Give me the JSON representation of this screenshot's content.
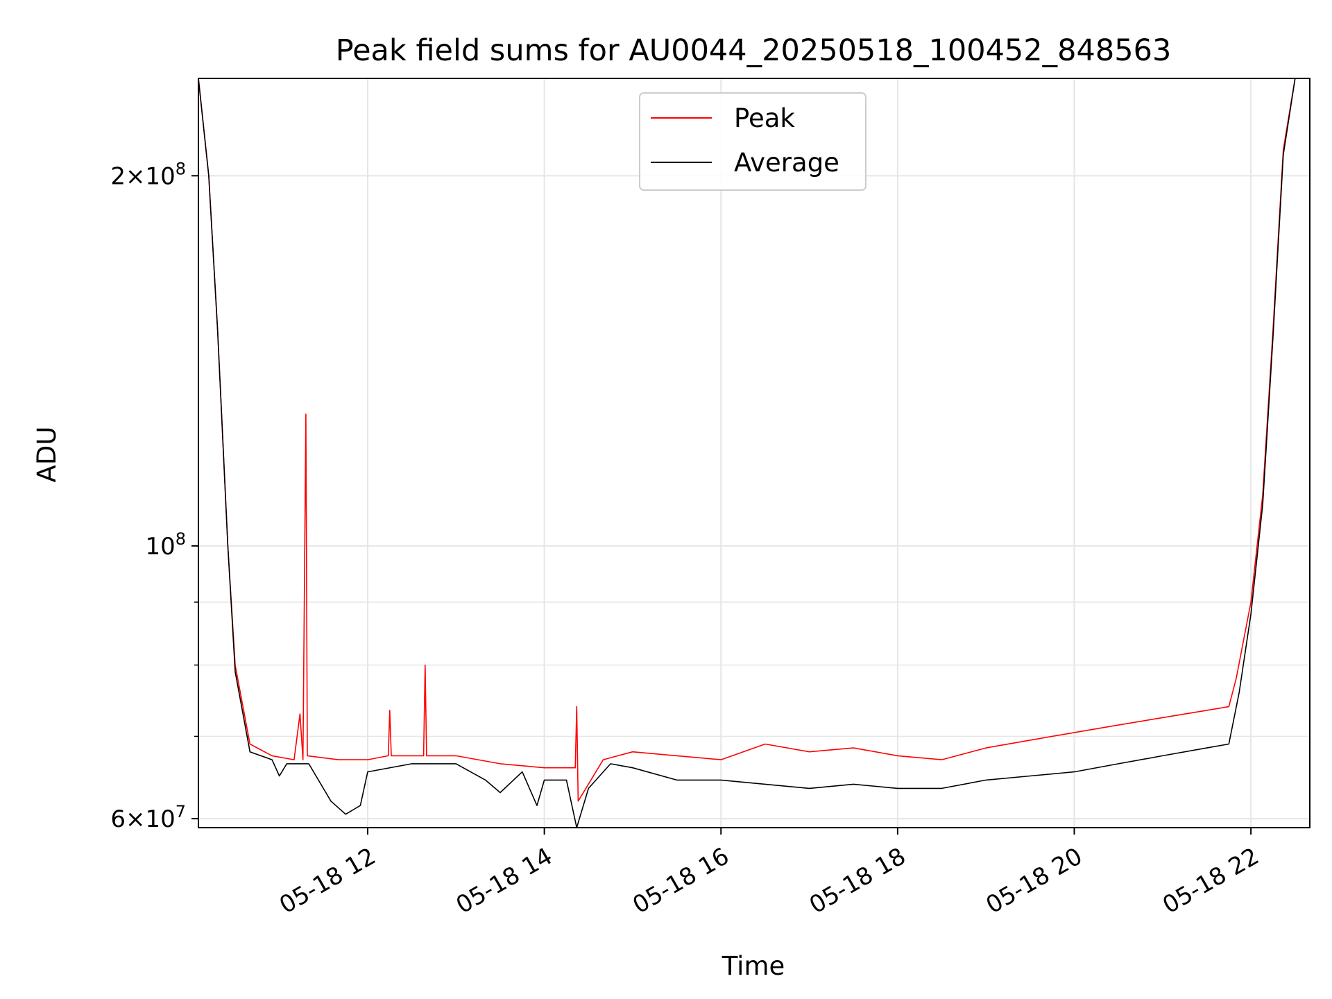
{
  "chart_data": {
    "type": "line",
    "title": "Peak field sums for AU0044_20250518_100452_848563",
    "xlabel": "Time",
    "ylabel": "ADU",
    "x_range": [
      "2025-05-18 10:05",
      "2025-05-18 22:40"
    ],
    "ylim": [
      59000000,
      240000000
    ],
    "y_scale": "log",
    "grid": true,
    "legend_position": "upper center",
    "x_ticks": [
      {
        "value": "2025-05-18 12:00",
        "label": "05-18 12"
      },
      {
        "value": "2025-05-18 14:00",
        "label": "05-18 14"
      },
      {
        "value": "2025-05-18 16:00",
        "label": "05-18 16"
      },
      {
        "value": "2025-05-18 18:00",
        "label": "05-18 18"
      },
      {
        "value": "2025-05-18 20:00",
        "label": "05-18 20"
      },
      {
        "value": "2025-05-18 22:00",
        "label": "05-18 22"
      }
    ],
    "y_ticks": [
      {
        "value": 60000000,
        "base": "6",
        "exp": "7"
      },
      {
        "value": 100000000,
        "base": "",
        "exp": "8"
      },
      {
        "value": 200000000,
        "base": "2",
        "exp": "8"
      }
    ],
    "series": [
      {
        "name": "Peak",
        "color": "#ff0000",
        "points": [
          [
            "2025-05-18 10:05",
            240000000
          ],
          [
            "2025-05-18 10:12",
            200000000
          ],
          [
            "2025-05-18 10:18",
            150000000
          ],
          [
            "2025-05-18 10:25",
            100000000
          ],
          [
            "2025-05-18 10:30",
            80000000
          ],
          [
            "2025-05-18 10:40",
            69000000
          ],
          [
            "2025-05-18 10:55",
            67500000
          ],
          [
            "2025-05-18 11:10",
            67000000
          ],
          [
            "2025-05-18 11:14",
            73000000
          ],
          [
            "2025-05-18 11:16",
            67000000
          ],
          [
            "2025-05-18 11:18",
            128000000
          ],
          [
            "2025-05-18 11:19",
            67500000
          ],
          [
            "2025-05-18 11:40",
            67000000
          ],
          [
            "2025-05-18 12:00",
            67000000
          ],
          [
            "2025-05-18 12:14",
            67500000
          ],
          [
            "2025-05-18 12:15",
            73500000
          ],
          [
            "2025-05-18 12:16",
            67500000
          ],
          [
            "2025-05-18 12:38",
            67500000
          ],
          [
            "2025-05-18 12:39",
            80000000
          ],
          [
            "2025-05-18 12:40",
            67500000
          ],
          [
            "2025-05-18 13:00",
            67500000
          ],
          [
            "2025-05-18 13:30",
            66500000
          ],
          [
            "2025-05-18 14:00",
            66000000
          ],
          [
            "2025-05-18 14:21",
            66000000
          ],
          [
            "2025-05-18 14:22",
            74000000
          ],
          [
            "2025-05-18 14:23",
            62000000
          ],
          [
            "2025-05-18 14:40",
            67000000
          ],
          [
            "2025-05-18 15:00",
            68000000
          ],
          [
            "2025-05-18 15:30",
            67500000
          ],
          [
            "2025-05-18 16:00",
            67000000
          ],
          [
            "2025-05-18 16:30",
            69000000
          ],
          [
            "2025-05-18 17:00",
            68000000
          ],
          [
            "2025-05-18 17:30",
            68500000
          ],
          [
            "2025-05-18 18:00",
            67500000
          ],
          [
            "2025-05-18 18:30",
            67000000
          ],
          [
            "2025-05-18 19:00",
            68500000
          ],
          [
            "2025-05-18 19:30",
            69500000
          ],
          [
            "2025-05-18 20:00",
            70500000
          ],
          [
            "2025-05-18 20:30",
            71500000
          ],
          [
            "2025-05-18 21:00",
            72500000
          ],
          [
            "2025-05-18 21:30",
            73500000
          ],
          [
            "2025-05-18 21:45",
            74000000
          ],
          [
            "2025-05-18 21:50",
            78000000
          ],
          [
            "2025-05-18 22:00",
            90000000
          ],
          [
            "2025-05-18 22:08",
            110000000
          ],
          [
            "2025-05-18 22:15",
            150000000
          ],
          [
            "2025-05-18 22:22",
            210000000
          ],
          [
            "2025-05-18 22:30",
            240000000
          ],
          [
            "2025-05-18 22:40",
            240000000
          ]
        ]
      },
      {
        "name": "Average",
        "color": "#000000",
        "points": [
          [
            "2025-05-18 10:05",
            240000000
          ],
          [
            "2025-05-18 10:12",
            200000000
          ],
          [
            "2025-05-18 10:18",
            150000000
          ],
          [
            "2025-05-18 10:25",
            100000000
          ],
          [
            "2025-05-18 10:30",
            79000000
          ],
          [
            "2025-05-18 10:40",
            68000000
          ],
          [
            "2025-05-18 10:55",
            67000000
          ],
          [
            "2025-05-18 11:00",
            65000000
          ],
          [
            "2025-05-18 11:05",
            66500000
          ],
          [
            "2025-05-18 11:20",
            66500000
          ],
          [
            "2025-05-18 11:35",
            62000000
          ],
          [
            "2025-05-18 11:45",
            60500000
          ],
          [
            "2025-05-18 11:55",
            61500000
          ],
          [
            "2025-05-18 12:00",
            65500000
          ],
          [
            "2025-05-18 12:30",
            66500000
          ],
          [
            "2025-05-18 13:00",
            66500000
          ],
          [
            "2025-05-18 13:20",
            64500000
          ],
          [
            "2025-05-18 13:30",
            63000000
          ],
          [
            "2025-05-18 13:45",
            65500000
          ],
          [
            "2025-05-18 13:55",
            61500000
          ],
          [
            "2025-05-18 14:00",
            64500000
          ],
          [
            "2025-05-18 14:15",
            64500000
          ],
          [
            "2025-05-18 14:22",
            59000000
          ],
          [
            "2025-05-18 14:30",
            63500000
          ],
          [
            "2025-05-18 14:45",
            66500000
          ],
          [
            "2025-05-18 15:00",
            66000000
          ],
          [
            "2025-05-18 15:30",
            64500000
          ],
          [
            "2025-05-18 16:00",
            64500000
          ],
          [
            "2025-05-18 16:30",
            64000000
          ],
          [
            "2025-05-18 17:00",
            63500000
          ],
          [
            "2025-05-18 17:30",
            64000000
          ],
          [
            "2025-05-18 18:00",
            63500000
          ],
          [
            "2025-05-18 18:30",
            63500000
          ],
          [
            "2025-05-18 19:00",
            64500000
          ],
          [
            "2025-05-18 19:30",
            65000000
          ],
          [
            "2025-05-18 20:00",
            65500000
          ],
          [
            "2025-05-18 20:30",
            66500000
          ],
          [
            "2025-05-18 21:00",
            67500000
          ],
          [
            "2025-05-18 21:30",
            68500000
          ],
          [
            "2025-05-18 21:45",
            69000000
          ],
          [
            "2025-05-18 21:52",
            76000000
          ],
          [
            "2025-05-18 22:00",
            88000000
          ],
          [
            "2025-05-18 22:08",
            108000000
          ],
          [
            "2025-05-18 22:15",
            148000000
          ],
          [
            "2025-05-18 22:22",
            208000000
          ],
          [
            "2025-05-18 22:30",
            240000000
          ],
          [
            "2025-05-18 22:40",
            240000000
          ]
        ]
      }
    ]
  }
}
